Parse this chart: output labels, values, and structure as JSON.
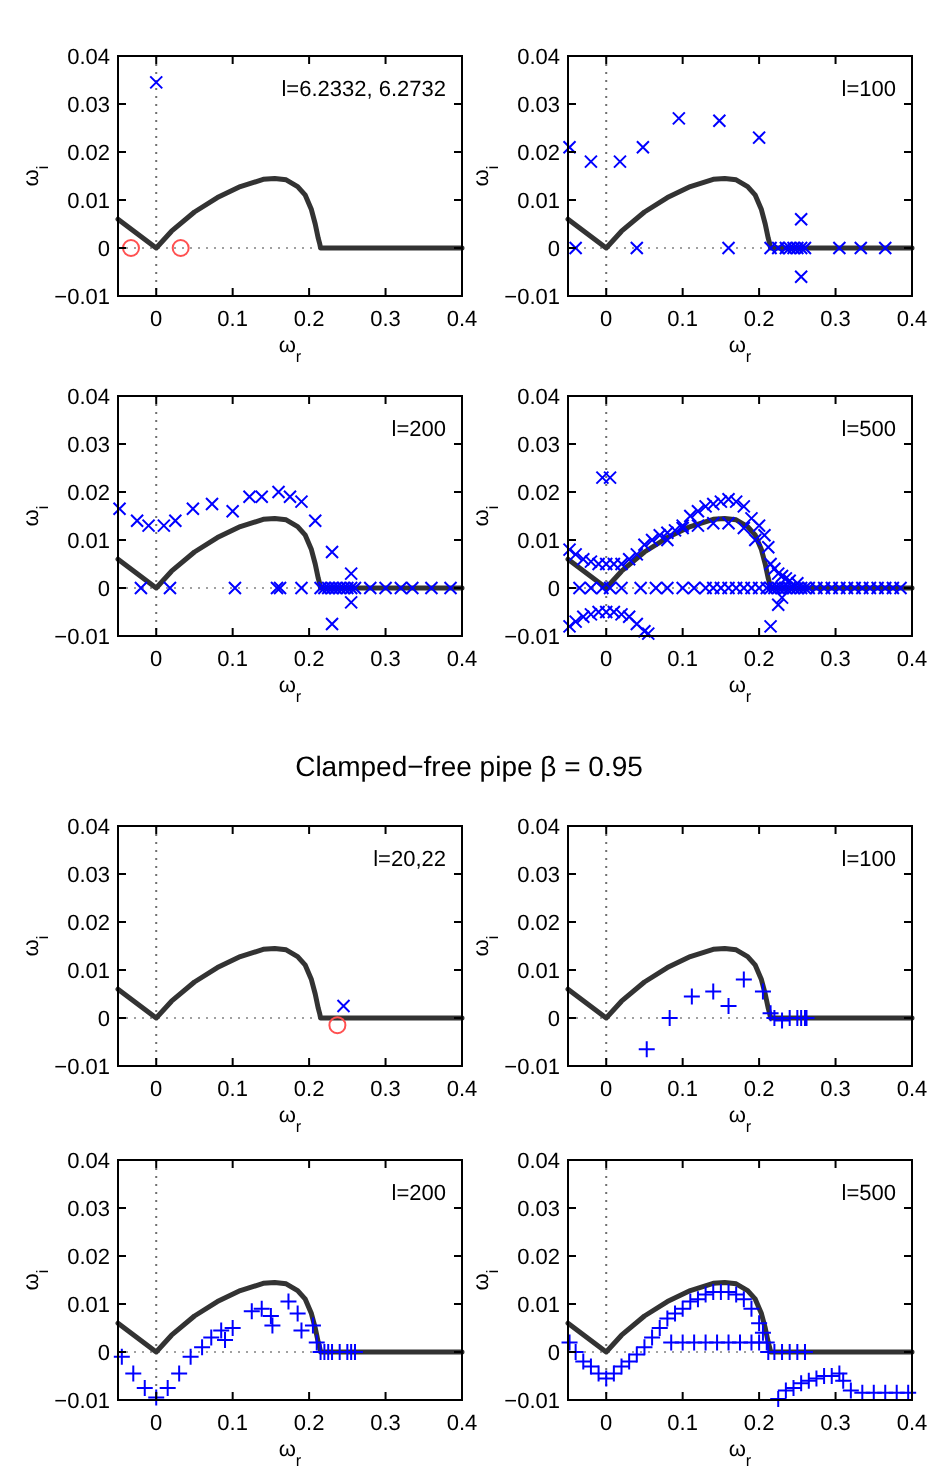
{
  "chart_data": [
    {
      "type": "scatter",
      "xlabel": "ω$_{r}$",
      "ylabel": "ω$_{i}$",
      "xlim": [
        -0.05,
        0.4
      ],
      "ylim": [
        -0.01,
        0.04
      ],
      "xticks": [
        0,
        0.1,
        0.2,
        0.3,
        0.4
      ],
      "yticks": [
        -0.01,
        0,
        0.01,
        0.02,
        0.03,
        0.04
      ],
      "annotations": [
        "l=6.2332, 6.2732"
      ],
      "ref_lines": [
        {
          "axis": "x",
          "value": 0,
          "color": "#707070",
          "line_style": "dotted"
        },
        {
          "axis": "y",
          "value": 0,
          "color": "#a0a0a0",
          "line_style": "dotted"
        }
      ],
      "series": [
        {
          "type": "line",
          "color": "#333333",
          "line_style": "solid",
          "x": [
            -0.05,
            0,
            0.02,
            0.05,
            0.08,
            0.11,
            0.14,
            0.155,
            0.17,
            0.185,
            0.195,
            0.203,
            0.208,
            0.212,
            0.214,
            0.215,
            0.4
          ],
          "values": [
            0.006,
            0,
            0.0035,
            0.0075,
            0.0105,
            0.0128,
            0.0143,
            0.0145,
            0.0142,
            0.0128,
            0.011,
            0.008,
            0.005,
            0.002,
            0.0008,
            0,
            0
          ]
        },
        {
          "color": "#0000ff",
          "marker": "cross",
          "x": [
            0
          ],
          "values": [
            0.0345
          ]
        },
        {
          "color": "#ff5050",
          "marker": "circle",
          "x": [
            -0.033,
            0.032
          ],
          "values": [
            0,
            0
          ]
        }
      ]
    },
    {
      "type": "scatter",
      "xlabel": "ω$_{r}$",
      "ylabel": "ω$_{i}$",
      "xlim": [
        -0.05,
        0.4
      ],
      "ylim": [
        -0.01,
        0.04
      ],
      "xticks": [
        0,
        0.1,
        0.2,
        0.3,
        0.4
      ],
      "yticks": [
        -0.01,
        0,
        0.01,
        0.02,
        0.03,
        0.04
      ],
      "annotations": [
        "l=100"
      ],
      "ref_lines": [
        {
          "axis": "x",
          "value": 0,
          "color": "#707070",
          "line_style": "dotted"
        },
        {
          "axis": "y",
          "value": 0,
          "color": "#a0a0a0",
          "line_style": "dotted"
        }
      ],
      "series": [
        {
          "type": "line",
          "color": "#333333",
          "line_style": "solid",
          "x": [
            -0.05,
            0,
            0.02,
            0.05,
            0.08,
            0.11,
            0.14,
            0.155,
            0.17,
            0.185,
            0.195,
            0.203,
            0.208,
            0.212,
            0.214,
            0.215,
            0.4
          ],
          "values": [
            0.006,
            0,
            0.0035,
            0.0075,
            0.0105,
            0.0128,
            0.0143,
            0.0145,
            0.0142,
            0.0128,
            0.011,
            0.008,
            0.005,
            0.002,
            0.0008,
            0,
            0
          ]
        },
        {
          "color": "#0000ff",
          "marker": "cross",
          "x": [
            -0.048,
            -0.04,
            -0.02,
            0.018,
            0.04,
            0.048,
            0.095,
            0.148,
            0.16,
            0.2,
            0.215,
            0.225,
            0.235,
            0.24,
            0.245,
            0.25,
            0.255,
            0.255,
            0.255,
            0.26,
            0.305,
            0.333,
            0.365
          ],
          "values": [
            0.021,
            0,
            0.018,
            0.018,
            0,
            0.021,
            0.027,
            0.0265,
            0,
            0.023,
            0,
            0,
            0,
            0,
            0,
            0,
            0.006,
            -0.006,
            0,
            0,
            0,
            0,
            0
          ]
        }
      ]
    },
    {
      "type": "scatter",
      "xlabel": "ω$_{r}$",
      "ylabel": "ω$_{i}$",
      "xlim": [
        -0.05,
        0.4
      ],
      "ylim": [
        -0.01,
        0.04
      ],
      "xticks": [
        0,
        0.1,
        0.2,
        0.3,
        0.4
      ],
      "yticks": [
        -0.01,
        0,
        0.01,
        0.02,
        0.03,
        0.04
      ],
      "annotations": [
        "l=200"
      ],
      "ref_lines": [
        {
          "axis": "x",
          "value": 0,
          "color": "#707070",
          "line_style": "dotted"
        },
        {
          "axis": "y",
          "value": 0,
          "color": "#a0a0a0",
          "line_style": "dotted"
        }
      ],
      "series": [
        {
          "type": "line",
          "color": "#333333",
          "line_style": "solid",
          "x": [
            -0.05,
            0,
            0.02,
            0.05,
            0.08,
            0.11,
            0.14,
            0.155,
            0.17,
            0.185,
            0.195,
            0.203,
            0.208,
            0.212,
            0.214,
            0.215,
            0.4
          ],
          "values": [
            0.006,
            0,
            0.0035,
            0.0075,
            0.0105,
            0.0128,
            0.0143,
            0.0145,
            0.0142,
            0.0128,
            0.011,
            0.008,
            0.005,
            0.002,
            0.0008,
            0,
            0
          ]
        },
        {
          "color": "#0000ff",
          "marker": "cross",
          "x": [
            -0.048,
            -0.025,
            -0.01,
            0.01,
            0.025,
            0.048,
            0.073,
            0.1,
            0.122,
            0.138,
            0.16,
            0.175,
            0.19,
            0.208,
            0.23,
            0.255,
            0.255,
            0.23,
            -0.02,
            0.018,
            0.103,
            0.158,
            0.162,
            0.19,
            0.215,
            0.22,
            0.225,
            0.23,
            0.235,
            0.24,
            0.245,
            0.25,
            0.255,
            0.26,
            0.28,
            0.3,
            0.32,
            0.335,
            0.36,
            0.385
          ],
          "values": [
            0.0165,
            0.014,
            0.013,
            0.013,
            0.014,
            0.0165,
            0.0175,
            0.016,
            0.019,
            0.019,
            0.02,
            0.019,
            0.018,
            0.014,
            0.0075,
            0.003,
            -0.003,
            -0.0075,
            0,
            0,
            0,
            0,
            0,
            0,
            0,
            0,
            0,
            0,
            0,
            0,
            0,
            0,
            0,
            0,
            0,
            0,
            0,
            0,
            0,
            0
          ]
        }
      ]
    },
    {
      "type": "scatter",
      "xlabel": "ω$_{r}$",
      "ylabel": "ω$_{i}$",
      "xlim": [
        -0.05,
        0.4
      ],
      "ylim": [
        -0.01,
        0.04
      ],
      "xticks": [
        0,
        0.1,
        0.2,
        0.3,
        0.4
      ],
      "yticks": [
        -0.01,
        0,
        0.01,
        0.02,
        0.03,
        0.04
      ],
      "annotations": [
        "l=500"
      ],
      "ref_lines": [
        {
          "axis": "x",
          "value": 0,
          "color": "#707070",
          "line_style": "dotted"
        },
        {
          "axis": "y",
          "value": 0,
          "color": "#a0a0a0",
          "line_style": "dotted"
        }
      ],
      "series": [
        {
          "type": "line",
          "color": "#333333",
          "line_style": "solid",
          "x": [
            -0.05,
            0,
            0.02,
            0.05,
            0.08,
            0.11,
            0.14,
            0.155,
            0.17,
            0.185,
            0.195,
            0.203,
            0.208,
            0.212,
            0.214,
            0.215,
            0.4
          ],
          "values": [
            0.006,
            0,
            0.0035,
            0.0075,
            0.0105,
            0.0128,
            0.0143,
            0.0145,
            0.0142,
            0.0128,
            0.011,
            0.008,
            0.005,
            0.002,
            0.0008,
            0,
            0
          ]
        },
        {
          "color": "#0000ff",
          "marker": "cross",
          "x": [
            -0.048,
            -0.04,
            -0.03,
            -0.02,
            -0.01,
            0,
            0.01,
            0.02,
            0.03,
            0.04,
            0.05,
            0.06,
            0.07,
            0.08,
            0.09,
            0.1,
            0.11,
            0.12,
            0.13,
            0.14,
            0.15,
            0.16,
            0.17,
            0.18,
            0.19,
            0.2,
            0.207,
            0.212,
            0.215,
            0.22,
            0.225,
            0.23,
            0.235,
            0.24,
            0.25,
            0.08,
            0.1,
            0.12,
            0.14,
            0.16,
            0.18,
            0.195,
            -0.005,
            0.005,
            0.215,
            0.225,
            0.23,
            -0.048,
            -0.04,
            -0.03,
            -0.02,
            -0.01,
            0,
            0.01,
            0.02,
            0.03,
            0.04,
            0.05,
            0.055,
            -0.035,
            -0.02,
            -0.005,
            0.005,
            0.02,
            0.045,
            0.065,
            0.08,
            0.1,
            0.115,
            0.13,
            0.14,
            0.15,
            0.16,
            0.17,
            0.18,
            0.19,
            0.2,
            0.21,
            0.215,
            0.22,
            0.225,
            0.23,
            0.235,
            0.24,
            0.245,
            0.25,
            0.255,
            0.26,
            0.265,
            0.275,
            0.285,
            0.295,
            0.305,
            0.315,
            0.325,
            0.335,
            0.345,
            0.355,
            0.365,
            0.375,
            0.385
          ],
          "values": [
            0.008,
            0.007,
            0.006,
            0.0055,
            0.005,
            0.005,
            0.005,
            0.005,
            0.006,
            0.007,
            0.009,
            0.01,
            0.011,
            0.0115,
            0.012,
            0.013,
            0.015,
            0.016,
            0.017,
            0.0175,
            0.018,
            0.0185,
            0.018,
            0.017,
            0.0145,
            0.013,
            0.011,
            0.0085,
            0.005,
            0.004,
            0.003,
            0.0025,
            0.002,
            0.0015,
            0.001,
            0.01,
            0.0125,
            0.013,
            0.0135,
            0.0135,
            0.0125,
            0.01,
            0.023,
            0.023,
            -0.008,
            -0.0035,
            -0.002,
            -0.008,
            -0.007,
            -0.006,
            -0.0055,
            -0.005,
            -0.005,
            -0.005,
            -0.0055,
            -0.006,
            -0.0075,
            -0.009,
            -0.0095,
            0,
            0,
            0,
            0,
            0,
            0,
            0,
            0,
            0,
            0,
            0,
            0,
            0,
            0,
            0,
            0,
            0,
            0,
            0,
            0,
            0,
            0,
            0,
            0,
            0,
            0,
            0,
            0,
            0,
            0,
            0,
            0,
            0,
            0,
            0,
            0,
            0,
            0,
            0,
            0,
            0,
            0
          ]
        }
      ]
    },
    {
      "type": "scatter",
      "title": "Clamped−free pipe   β = 0.95",
      "xlabel": "ω$_{r}$",
      "ylabel": "ω$_{i}$",
      "xlim": [
        -0.05,
        0.4
      ],
      "ylim": [
        -0.01,
        0.04
      ],
      "xticks": [
        0,
        0.1,
        0.2,
        0.3,
        0.4
      ],
      "yticks": [
        -0.01,
        0,
        0.01,
        0.02,
        0.03,
        0.04
      ],
      "annotations": [
        "l=20,22"
      ],
      "ref_lines": [
        {
          "axis": "x",
          "value": 0,
          "color": "#707070",
          "line_style": "dotted"
        },
        {
          "axis": "y",
          "value": 0,
          "color": "#a0a0a0",
          "line_style": "dotted"
        }
      ],
      "series": [
        {
          "type": "line",
          "color": "#333333",
          "line_style": "solid",
          "x": [
            -0.05,
            0,
            0.02,
            0.05,
            0.08,
            0.11,
            0.14,
            0.155,
            0.17,
            0.185,
            0.195,
            0.203,
            0.208,
            0.212,
            0.214,
            0.215,
            0.4
          ],
          "values": [
            0.006,
            0,
            0.0035,
            0.0075,
            0.0105,
            0.0128,
            0.0143,
            0.0145,
            0.0142,
            0.0128,
            0.011,
            0.008,
            0.005,
            0.002,
            0.0008,
            0,
            0
          ]
        },
        {
          "color": "#0000ff",
          "marker": "cross",
          "x": [
            0.245
          ],
          "values": [
            0.0025
          ]
        },
        {
          "color": "#ff5050",
          "marker": "circle",
          "x": [
            0.237
          ],
          "values": [
            -0.0015
          ]
        }
      ]
    },
    {
      "type": "scatter",
      "xlabel": "ω$_{r}$",
      "ylabel": "ω$_{i}$",
      "xlim": [
        -0.05,
        0.4
      ],
      "ylim": [
        -0.01,
        0.04
      ],
      "xticks": [
        0,
        0.1,
        0.2,
        0.3,
        0.4
      ],
      "yticks": [
        -0.01,
        0,
        0.01,
        0.02,
        0.03,
        0.04
      ],
      "annotations": [
        "l=100"
      ],
      "ref_lines": [
        {
          "axis": "x",
          "value": 0,
          "color": "#707070",
          "line_style": "dotted"
        },
        {
          "axis": "y",
          "value": 0,
          "color": "#a0a0a0",
          "line_style": "dotted"
        }
      ],
      "series": [
        {
          "type": "line",
          "color": "#333333",
          "line_style": "solid",
          "x": [
            -0.05,
            0,
            0.02,
            0.05,
            0.08,
            0.11,
            0.14,
            0.155,
            0.17,
            0.185,
            0.195,
            0.203,
            0.208,
            0.212,
            0.214,
            0.215,
            0.4
          ],
          "values": [
            0.006,
            0,
            0.0035,
            0.0075,
            0.0105,
            0.0128,
            0.0143,
            0.0145,
            0.0142,
            0.0128,
            0.011,
            0.008,
            0.005,
            0.002,
            0.0008,
            0,
            0
          ]
        },
        {
          "color": "#0000ff",
          "marker": "plus",
          "x": [
            0.053,
            0.083,
            0.112,
            0.14,
            0.16,
            0.18,
            0.205,
            0.215,
            0.22,
            0.23,
            0.24,
            0.25,
            0.255,
            0.26,
            0.262
          ],
          "values": [
            -0.0065,
            0,
            0.0045,
            0.0055,
            0.0025,
            0.008,
            0.0055,
            0.001,
            0,
            -0.0005,
            0,
            0,
            0,
            0,
            0
          ]
        }
      ]
    },
    {
      "type": "scatter",
      "xlabel": "ω$_{r}$",
      "ylabel": "ω$_{i}$",
      "xlim": [
        -0.05,
        0.4
      ],
      "ylim": [
        -0.01,
        0.04
      ],
      "xticks": [
        0,
        0.1,
        0.2,
        0.3,
        0.4
      ],
      "yticks": [
        -0.01,
        0,
        0.01,
        0.02,
        0.03,
        0.04
      ],
      "annotations": [
        "l=200"
      ],
      "ref_lines": [
        {
          "axis": "x",
          "value": 0,
          "color": "#707070",
          "line_style": "dotted"
        },
        {
          "axis": "y",
          "value": 0,
          "color": "#a0a0a0",
          "line_style": "dotted"
        }
      ],
      "series": [
        {
          "type": "line",
          "color": "#333333",
          "line_style": "solid",
          "x": [
            -0.05,
            0,
            0.02,
            0.05,
            0.08,
            0.11,
            0.14,
            0.155,
            0.17,
            0.185,
            0.195,
            0.203,
            0.208,
            0.212,
            0.214,
            0.215,
            0.4
          ],
          "values": [
            0.006,
            0,
            0.0035,
            0.0075,
            0.0105,
            0.0128,
            0.0143,
            0.0145,
            0.0142,
            0.0128,
            0.011,
            0.008,
            0.005,
            0.002,
            0.0008,
            0,
            0
          ]
        },
        {
          "color": "#0000ff",
          "marker": "plus",
          "x": [
            -0.045,
            -0.03,
            -0.015,
            0,
            0.015,
            0.03,
            0.045,
            0.06,
            0.072,
            0.085,
            0.09,
            0.1,
            0.125,
            0.138,
            0.15,
            0.152,
            0.173,
            0.185,
            0.19,
            0.205,
            0.21,
            0.215,
            0.22,
            0.225,
            0.23,
            0.24,
            0.25,
            0.255,
            0.26
          ],
          "values": [
            -0.001,
            -0.0045,
            -0.0075,
            -0.0095,
            -0.0075,
            -0.0045,
            -0.001,
            0.001,
            0.003,
            0.0045,
            0.0025,
            0.005,
            0.0085,
            0.009,
            0.0075,
            0.0055,
            0.0105,
            0.008,
            0.0045,
            0.0055,
            0.002,
            0,
            0,
            0,
            0,
            0,
            0,
            0,
            0
          ]
        }
      ]
    },
    {
      "type": "scatter",
      "xlabel": "ω$_{r}$",
      "ylabel": "ω$_{i}$",
      "xlim": [
        -0.05,
        0.4
      ],
      "ylim": [
        -0.01,
        0.04
      ],
      "xticks": [
        0,
        0.1,
        0.2,
        0.3,
        0.4
      ],
      "yticks": [
        -0.01,
        0,
        0.01,
        0.02,
        0.03,
        0.04
      ],
      "annotations": [
        "l=500"
      ],
      "ref_lines": [
        {
          "axis": "x",
          "value": 0,
          "color": "#707070",
          "line_style": "dotted"
        },
        {
          "axis": "y",
          "value": 0,
          "color": "#a0a0a0",
          "line_style": "dotted"
        }
      ],
      "series": [
        {
          "type": "line",
          "color": "#333333",
          "line_style": "solid",
          "x": [
            -0.05,
            0,
            0.02,
            0.05,
            0.08,
            0.11,
            0.14,
            0.155,
            0.17,
            0.185,
            0.195,
            0.203,
            0.208,
            0.212,
            0.214,
            0.215,
            0.4
          ],
          "values": [
            0.006,
            0,
            0.0035,
            0.0075,
            0.0105,
            0.0128,
            0.0143,
            0.0145,
            0.0142,
            0.0128,
            0.011,
            0.008,
            0.005,
            0.002,
            0.0008,
            0,
            0
          ]
        },
        {
          "color": "#0000ff",
          "marker": "plus",
          "x": [
            -0.048,
            -0.04,
            -0.03,
            -0.02,
            -0.01,
            0,
            0.01,
            0.02,
            0.03,
            0.04,
            0.05,
            0.06,
            0.07,
            0.08,
            0.09,
            0.1,
            0.11,
            0.12,
            0.13,
            0.14,
            0.15,
            0.16,
            0.17,
            0.18,
            0.19,
            0.2,
            0.205,
            0.21,
            0.212,
            0.22,
            0.23,
            0.24,
            0.25,
            0.26,
            0.085,
            0.1,
            0.115,
            0.13,
            0.145,
            0.16,
            0.175,
            0.19,
            0.2,
            0.225,
            0.235,
            0.245,
            0.255,
            0.265,
            0.275,
            0.285,
            0.295,
            0.305,
            0.31,
            0.32,
            0.335,
            0.35,
            0.365,
            0.38,
            0.395
          ],
          "values": [
            0.002,
            0,
            -0.002,
            -0.003,
            -0.0045,
            -0.0055,
            -0.0045,
            -0.003,
            -0.002,
            -0.0005,
            0.001,
            0.003,
            0.005,
            0.007,
            0.008,
            0.009,
            0.0105,
            0.011,
            0.012,
            0.0125,
            0.0125,
            0.0125,
            0.012,
            0.011,
            0.009,
            0.006,
            0.004,
            0.002,
            0,
            0,
            0,
            0,
            0,
            0,
            0.002,
            0.002,
            0.002,
            0.002,
            0.002,
            0.002,
            0.002,
            0.002,
            0.002,
            -0.0098,
            -0.008,
            -0.0075,
            -0.0065,
            -0.006,
            -0.0055,
            -0.005,
            -0.005,
            -0.0045,
            -0.006,
            -0.008,
            -0.0085,
            -0.0085,
            -0.0085,
            -0.0085,
            -0.0085
          ]
        }
      ]
    }
  ]
}
